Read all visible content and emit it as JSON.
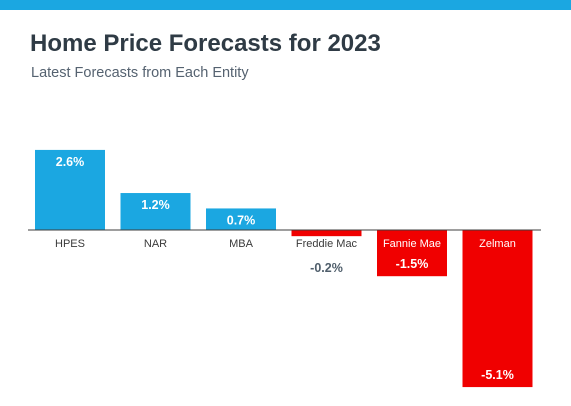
{
  "header": {
    "title": "Home Price Forecasts for 2023",
    "subtitle": "Latest Forecasts from Each Entity"
  },
  "colors": {
    "accent_bar": "#1ba7e1",
    "positive": "#1ba7e1",
    "negative": "#f00000",
    "axis": "#3c3c3c",
    "label_dark": "#4f5e6b"
  },
  "chart_data": {
    "type": "bar",
    "categories": [
      "HPES",
      "NAR",
      "MBA",
      "Freddie Mac",
      "Fannie Mae",
      "Zelman"
    ],
    "values": [
      2.6,
      1.2,
      0.7,
      -0.2,
      -1.5,
      -5.1
    ],
    "value_labels": [
      "2.6%",
      "1.2%",
      "0.7%",
      "-0.2%",
      "-1.5%",
      "-5.1%"
    ],
    "title": "Home Price Forecasts for 2023",
    "subtitle": "Latest Forecasts from Each Entity",
    "xlabel": "",
    "ylabel": "",
    "ylim": [
      -5.1,
      2.6
    ],
    "grid": false,
    "legend": "none"
  }
}
